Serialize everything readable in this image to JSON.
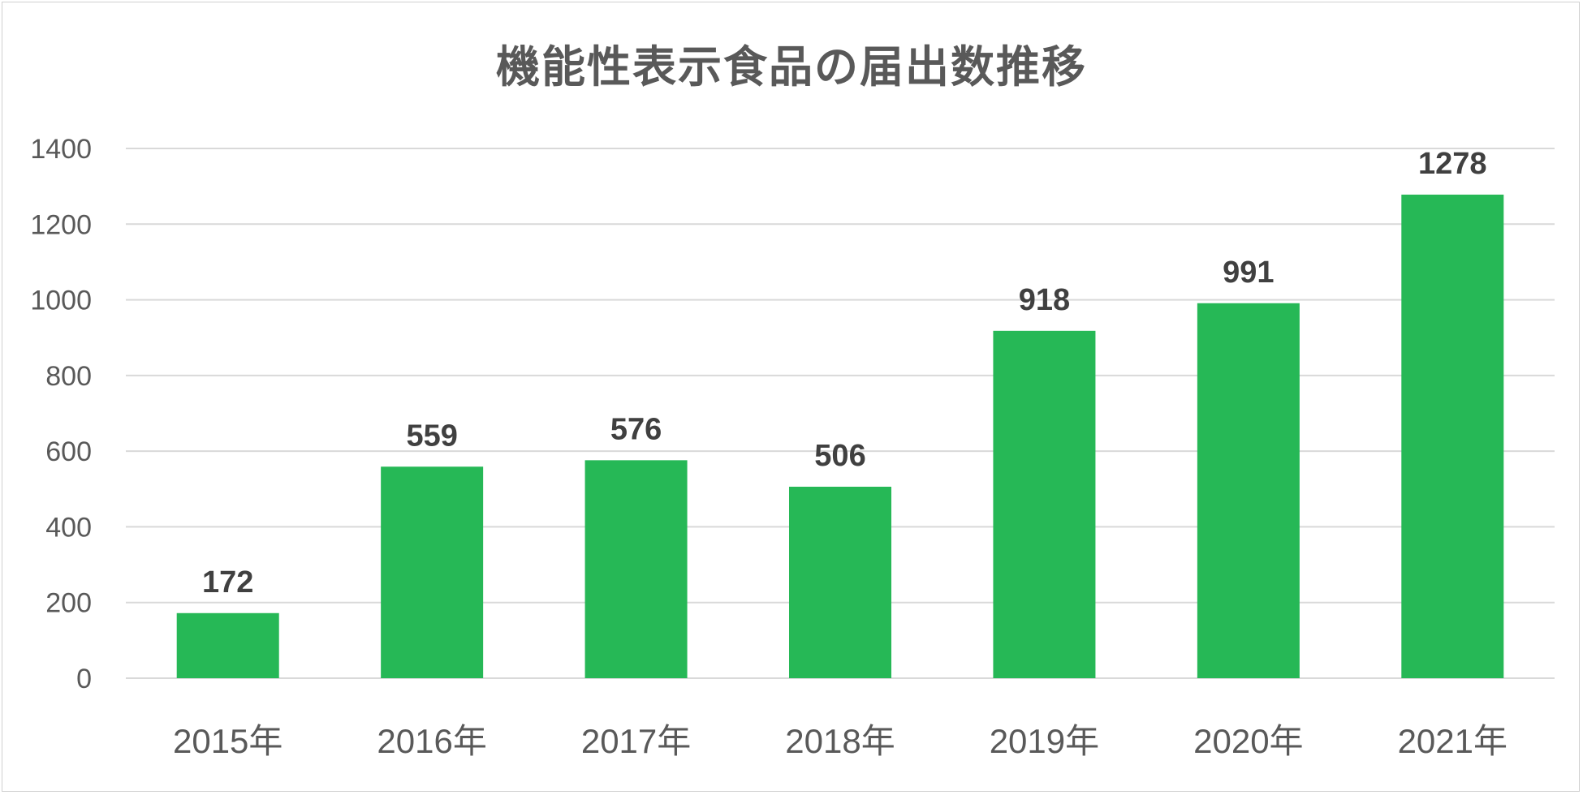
{
  "chart_data": {
    "type": "bar",
    "title": "機能性表示食品の届出数推移",
    "categories": [
      "2015年",
      "2016年",
      "2017年",
      "2018年",
      "2019年",
      "2020年",
      "2021年"
    ],
    "values": [
      172,
      559,
      576,
      506,
      918,
      991,
      1278
    ],
    "ylim": [
      0,
      1400
    ],
    "yticks": [
      0,
      200,
      400,
      600,
      800,
      1000,
      1200,
      1400
    ],
    "grid": true,
    "data_labels": true,
    "bar_color": "#26b856",
    "grid_color": "#d9d9d9",
    "text_color": "#595959",
    "label_color": "#404040"
  }
}
